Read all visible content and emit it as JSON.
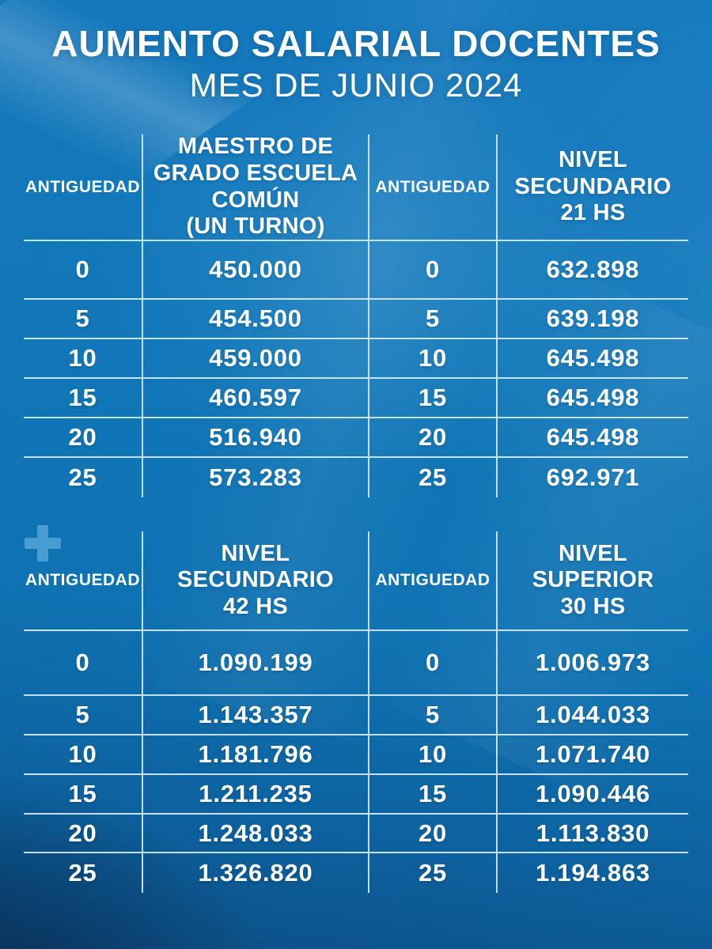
{
  "page": {
    "title": "AUMENTO SALARIAL DOCENTES",
    "subtitle": "MES DE JUNIO 2024"
  },
  "labels": {
    "antiguedad": "ANTIGUEDAD"
  },
  "icons": {
    "plus": "+"
  },
  "colors": {
    "background_top": "#1579be",
    "background_mid": "#0f72b2",
    "background_bottom_left": "#0c4e84",
    "divider_line": "#d8eefa",
    "text": "#ffffff",
    "plus_icon": "#5fb0e0"
  },
  "chart_data": [
    {
      "type": "table",
      "title": "MAESTRO DE GRADO ESCUELA COMÚN (UN TURNO)",
      "title_display": "MAESTRO DE\nGRADO ESCUELA\nCOMÚN\n(UN TURNO)",
      "columns": [
        "ANTIGUEDAD",
        "MAESTRO DE GRADO ESCUELA COMÚN (UN TURNO)"
      ],
      "rows": [
        [
          "0",
          "450.000"
        ],
        [
          "5",
          "454.500"
        ],
        [
          "10",
          "459.000"
        ],
        [
          "15",
          "460.597"
        ],
        [
          "20",
          "516.940"
        ],
        [
          "25",
          "573.283"
        ]
      ]
    },
    {
      "type": "table",
      "title": "NIVEL SECUNDARIO 21 HS",
      "title_display": "NIVEL\nSECUNDARIO\n21 HS",
      "columns": [
        "ANTIGUEDAD",
        "NIVEL SECUNDARIO 21 HS"
      ],
      "rows": [
        [
          "0",
          "632.898"
        ],
        [
          "5",
          "639.198"
        ],
        [
          "10",
          "645.498"
        ],
        [
          "15",
          "645.498"
        ],
        [
          "20",
          "645.498"
        ],
        [
          "25",
          "692.971"
        ]
      ]
    },
    {
      "type": "table",
      "title": "NIVEL SECUNDARIO 42 HS",
      "title_display": "NIVEL\nSECUNDARIO\n42 HS",
      "columns": [
        "ANTIGUEDAD",
        "NIVEL SECUNDARIO 42 HS"
      ],
      "rows": [
        [
          "0",
          "1.090.199"
        ],
        [
          "5",
          "1.143.357"
        ],
        [
          "10",
          "1.181.796"
        ],
        [
          "15",
          "1.211.235"
        ],
        [
          "20",
          "1.248.033"
        ],
        [
          "25",
          "1.326.820"
        ]
      ]
    },
    {
      "type": "table",
      "title": "NIVEL SUPERIOR 30 HS",
      "title_display": "NIVEL\nSUPERIOR\n30 HS",
      "columns": [
        "ANTIGUEDAD",
        "NIVEL SUPERIOR 30 HS"
      ],
      "rows": [
        [
          "0",
          "1.006.973"
        ],
        [
          "5",
          "1.044.033"
        ],
        [
          "10",
          "1.071.740"
        ],
        [
          "15",
          "1.090.446"
        ],
        [
          "20",
          "1.113.830"
        ],
        [
          "25",
          "1.194.863"
        ]
      ]
    }
  ]
}
